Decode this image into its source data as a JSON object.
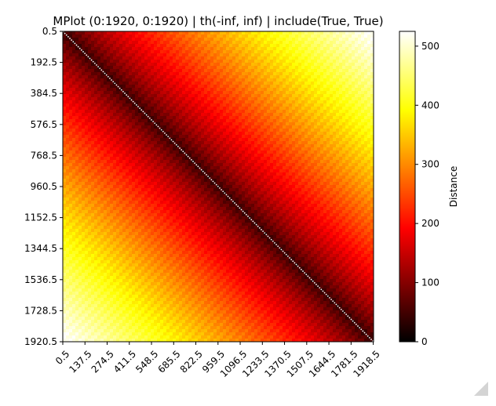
{
  "chart_data": {
    "type": "heatmap",
    "title": "MPlot (0:1920, 0:1920) | th(-inf, inf) | include(True, True)",
    "x_ticks": [
      "0.5",
      "137.5",
      "274.5",
      "411.5",
      "548.5",
      "685.5",
      "822.5",
      "959.5",
      "1096.5",
      "1233.5",
      "1370.5",
      "1507.5",
      "1644.5",
      "1781.5",
      "1918.5"
    ],
    "y_ticks": [
      "0.5",
      "192.5",
      "384.5",
      "576.5",
      "768.5",
      "960.5",
      "1152.5",
      "1344.5",
      "1536.5",
      "1728.5",
      "1920.5"
    ],
    "colorbar": {
      "label": "Distance",
      "range": [
        0,
        525
      ],
      "ticks": [
        0,
        100,
        200,
        300,
        400,
        500
      ],
      "colormap": "hot"
    },
    "matrix": {
      "size": 1920,
      "diagonal_value": 525,
      "near_diagonal_value": 40,
      "corner_value": 525
    }
  }
}
